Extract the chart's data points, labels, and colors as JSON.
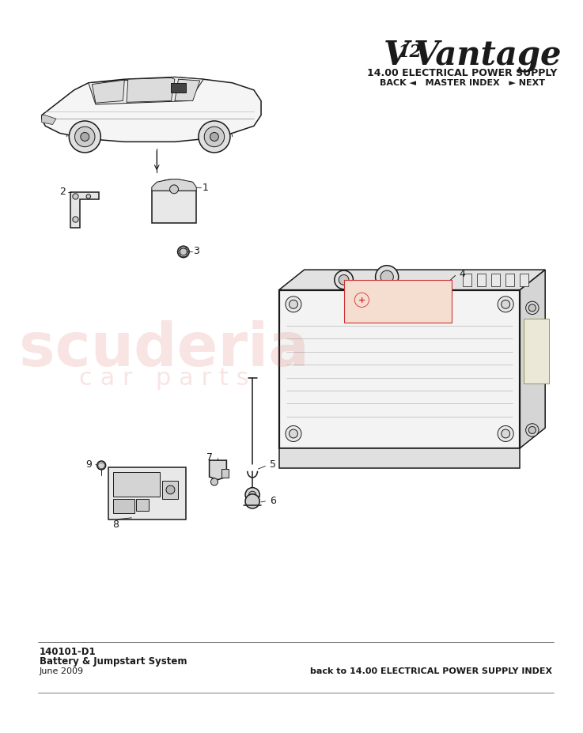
{
  "title_logo_v": "V",
  "title_logo_12": "12",
  "title_logo_vantage": "Vantage",
  "section_title": "14.00 ELECTRICAL POWER SUPPLY",
  "nav_text": "BACK ◄   MASTER INDEX   ► NEXT",
  "part_number": "140101-D1",
  "part_name": "Battery & Jumpstart System",
  "date": "June 2009",
  "back_link": "back to 14.00 ELECTRICAL POWER SUPPLY INDEX",
  "watermark_line1": "scuderia",
  "watermark_line2": "c a r   p a r t s",
  "bg_color": "#ffffff",
  "line_color": "#1a1a1a"
}
